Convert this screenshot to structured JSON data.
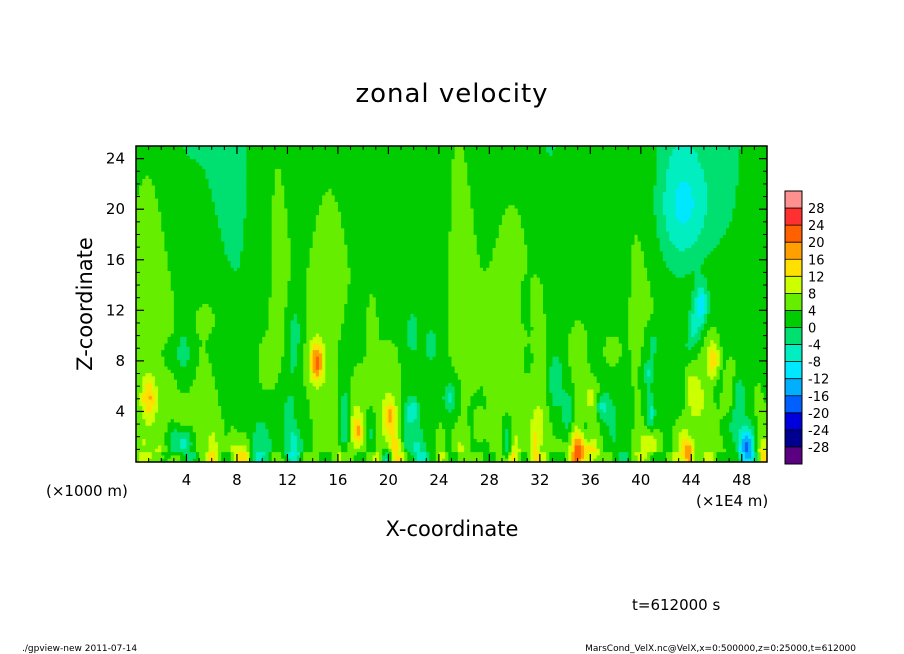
{
  "chart_data": {
    "type": "heatmap",
    "title": "zonal velocity",
    "xlabel": "X-coordinate",
    "ylabel": "Z-coordinate",
    "x_units_left": "(×1000 m)",
    "x_units_right": "(×1E4 m)",
    "xlim": [
      0,
      50
    ],
    "ylim": [
      0,
      25
    ],
    "x_ticks": [
      "4",
      "8",
      "12",
      "16",
      "20",
      "24",
      "28",
      "32",
      "36",
      "40",
      "44",
      "48"
    ],
    "x_tick_values": [
      4,
      8,
      12,
      16,
      20,
      24,
      28,
      32,
      36,
      40,
      44,
      48
    ],
    "y_ticks": [
      "4",
      "8",
      "12",
      "16",
      "20",
      "24"
    ],
    "y_tick_values": [
      4,
      8,
      12,
      16,
      20,
      24
    ],
    "colorbar": {
      "labels": [
        "28",
        "24",
        "20",
        "16",
        "12",
        "8",
        "4",
        "0",
        "-4",
        "-8",
        "-12",
        "-16",
        "-20",
        "-24",
        "-28"
      ],
      "levels": [
        28,
        24,
        20,
        16,
        12,
        8,
        4,
        0,
        -4,
        -8,
        -12,
        -16,
        -20,
        -24,
        -28
      ],
      "bins_high_to_low": [
        "#ff9090",
        "#ff3030",
        "#ff6000",
        "#ffa000",
        "#ffe000",
        "#ccff00",
        "#66ee00",
        "#00cc00",
        "#00e070",
        "#00eec0",
        "#00e8ff",
        "#00b0ff",
        "#0060ff",
        "#0000dd",
        "#000090",
        "#5a0080"
      ]
    },
    "features": [
      {
        "x": 14.3,
        "z": 7.9,
        "value": 16
      },
      {
        "x": 35.0,
        "z": 1.0,
        "value": 16
      },
      {
        "x": 43.5,
        "z": 1.2,
        "value": 13
      },
      {
        "x": 45.8,
        "z": 8.0,
        "value": 12
      },
      {
        "x": 1.0,
        "z": 5.0,
        "value": 10
      },
      {
        "x": 43.5,
        "z": 20.0,
        "value": -9
      },
      {
        "x": 44.8,
        "z": 12.5,
        "value": -13
      },
      {
        "x": 48.5,
        "z": 1.2,
        "value": -18
      }
    ]
  },
  "annotations": {
    "time_label": "t=612000 s",
    "footer_left": "./gpview-new  2011-07-14",
    "footer_right": "MarsCond_VelX.nc@VelX,x=0:500000,z=0:25000,t=612000"
  }
}
